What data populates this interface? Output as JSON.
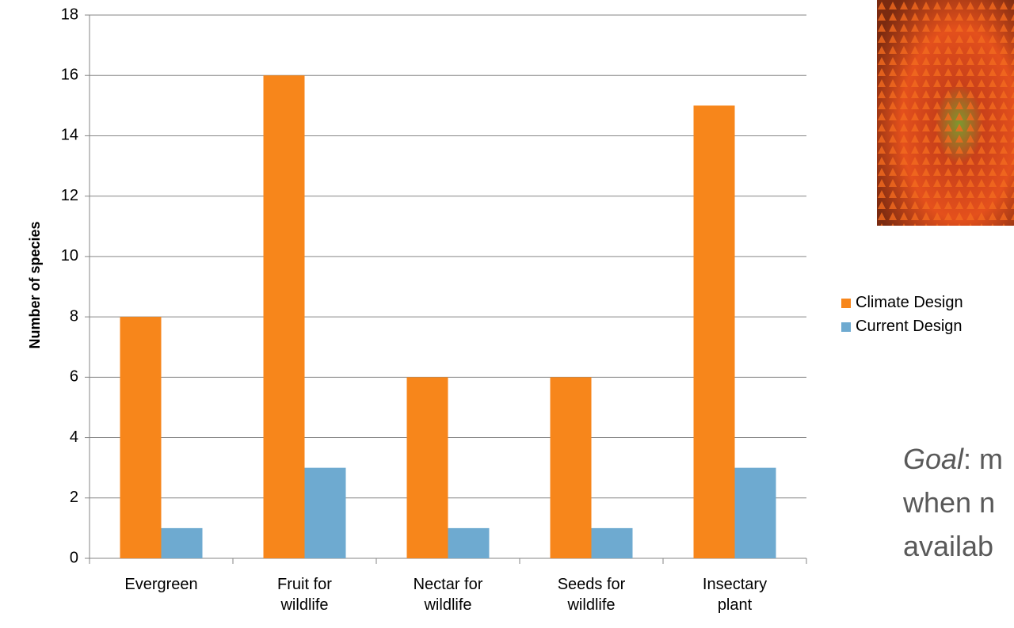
{
  "chart_data": {
    "type": "bar",
    "y_label": "Number of species",
    "categories": [
      "Evergreen",
      "Fruit for wildlife",
      "Nectar for wildlife",
      "Seeds for wildlife",
      "Insectary plant"
    ],
    "series": [
      {
        "name": "Climate Design",
        "color": "#f7861b",
        "values": [
          8,
          16,
          6,
          6,
          15
        ]
      },
      {
        "name": "Current Design",
        "color": "#6eaad0",
        "values": [
          1,
          3,
          1,
          1,
          3
        ]
      }
    ],
    "ylim": [
      0,
      18
    ],
    "yticks": [
      0,
      2,
      4,
      6,
      8,
      10,
      12,
      14,
      16,
      18
    ],
    "grid": true,
    "annotation": {
      "emphasis": "Goal",
      "lines": [
        ": m",
        "when n",
        "availab"
      ]
    }
  }
}
